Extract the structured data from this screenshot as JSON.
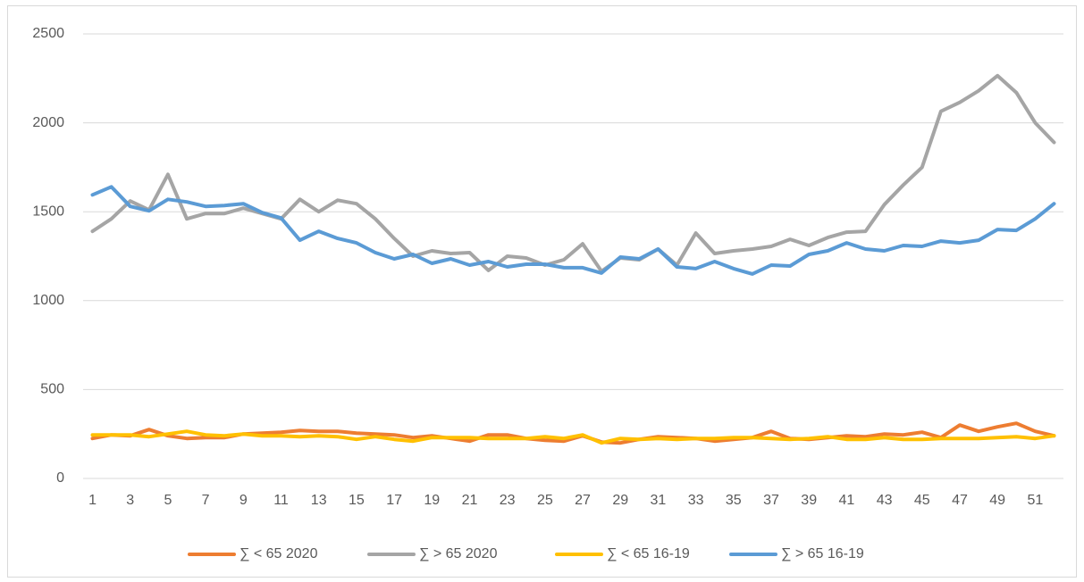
{
  "chart_data": {
    "type": "line",
    "categories": [
      "1",
      null,
      "3",
      null,
      "5",
      null,
      "7",
      null,
      "9",
      null,
      "11",
      null,
      "13",
      null,
      "15",
      null,
      "17",
      null,
      "19",
      null,
      "21",
      null,
      "23",
      null,
      "25",
      null,
      "27",
      null,
      "29",
      null,
      "31",
      null,
      "33",
      null,
      "35",
      null,
      "37",
      null,
      "39",
      null,
      "41",
      null,
      "43",
      null,
      "45",
      null,
      "47",
      null,
      "49",
      null,
      "51",
      null
    ],
    "ylim": [
      0,
      2500
    ],
    "yticks": [
      0,
      500,
      1000,
      1500,
      2000,
      2500
    ],
    "grid": true,
    "legend": "bottom",
    "series": [
      {
        "name": "∑ < 65 2020",
        "color": "#ed7d31",
        "values": [
          225,
          245,
          240,
          275,
          240,
          225,
          230,
          230,
          250,
          255,
          260,
          270,
          265,
          265,
          255,
          250,
          245,
          230,
          240,
          225,
          210,
          245,
          245,
          225,
          215,
          210,
          240,
          205,
          200,
          220,
          235,
          230,
          225,
          210,
          220,
          230,
          265,
          225,
          220,
          230,
          240,
          235,
          250,
          245,
          260,
          230,
          300,
          265,
          290,
          310,
          265,
          240
        ]
      },
      {
        "name": "∑ > 65 2020",
        "color": "#a5a5a5",
        "values": [
          1390,
          1460,
          1560,
          1510,
          1710,
          1460,
          1490,
          1490,
          1520,
          1490,
          1460,
          1570,
          1500,
          1565,
          1545,
          1460,
          1350,
          1250,
          1280,
          1265,
          1270,
          1170,
          1250,
          1240,
          1200,
          1230,
          1320,
          1165,
          1240,
          1230,
          1290,
          1200,
          1380,
          1265,
          1280,
          1290,
          1305,
          1345,
          1310,
          1355,
          1385,
          1390,
          1540,
          1650,
          1750,
          2065,
          2115,
          2180,
          2265,
          2170,
          2000,
          1890
        ]
      },
      {
        "name": "∑ < 65 16-19",
        "color": "#ffc000",
        "values": [
          245,
          245,
          245,
          235,
          250,
          265,
          245,
          240,
          250,
          240,
          240,
          235,
          240,
          235,
          220,
          235,
          220,
          210,
          230,
          230,
          230,
          225,
          225,
          225,
          235,
          225,
          245,
          200,
          225,
          220,
          225,
          220,
          225,
          225,
          230,
          230,
          225,
          220,
          225,
          235,
          220,
          220,
          230,
          220,
          220,
          225,
          225,
          225,
          230,
          235,
          225,
          240
        ]
      },
      {
        "name": "∑ > 65 16-19",
        "color": "#5b9bd5",
        "values": [
          1595,
          1640,
          1530,
          1505,
          1570,
          1555,
          1530,
          1535,
          1545,
          1495,
          1465,
          1340,
          1390,
          1350,
          1325,
          1270,
          1235,
          1260,
          1210,
          1235,
          1200,
          1220,
          1190,
          1205,
          1205,
          1185,
          1185,
          1155,
          1245,
          1235,
          1290,
          1190,
          1180,
          1220,
          1180,
          1150,
          1200,
          1195,
          1260,
          1280,
          1325,
          1290,
          1280,
          1310,
          1305,
          1335,
          1325,
          1340,
          1400,
          1395,
          1460,
          1545
        ]
      }
    ]
  }
}
